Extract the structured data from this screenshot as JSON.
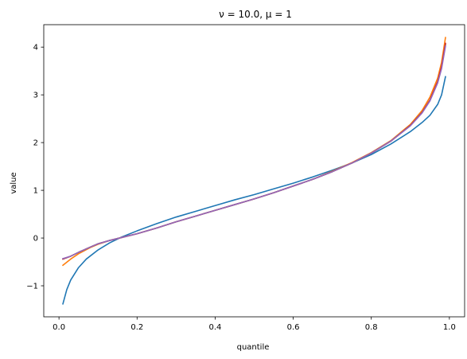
{
  "chart_data": {
    "type": "line",
    "title": "ν = 10.0, μ = 1",
    "xlabel": "quantile",
    "ylabel": "value",
    "xlim": [
      -0.039,
      1.039
    ],
    "ylim": [
      -1.65,
      4.47
    ],
    "xticks": [
      0.0,
      0.2,
      0.4,
      0.6,
      0.8,
      1.0
    ],
    "xtick_labels": [
      "0.0",
      "0.2",
      "0.4",
      "0.6",
      "0.8",
      "1.0"
    ],
    "yticks": [
      -1,
      0,
      1,
      2,
      3,
      4
    ],
    "ytick_labels": [
      "−1",
      "0",
      "1",
      "2",
      "3",
      "4"
    ],
    "grid": false,
    "legend": "none",
    "series": [
      {
        "color": "#1f77b4",
        "x": [
          0.01,
          0.02,
          0.03,
          0.05,
          0.07,
          0.1,
          0.13,
          0.16,
          0.2,
          0.25,
          0.3,
          0.35,
          0.4,
          0.45,
          0.5,
          0.55,
          0.6,
          0.65,
          0.7,
          0.75,
          0.8,
          0.85,
          0.9,
          0.93,
          0.95,
          0.97,
          0.98,
          0.99
        ],
        "y": [
          -1.38,
          -1.08,
          -0.88,
          -0.62,
          -0.44,
          -0.25,
          -0.1,
          0.02,
          0.15,
          0.3,
          0.44,
          0.56,
          0.68,
          0.8,
          0.91,
          1.03,
          1.15,
          1.28,
          1.42,
          1.57,
          1.75,
          1.97,
          2.23,
          2.42,
          2.57,
          2.8,
          3.0,
          3.38
        ]
      },
      {
        "color": "#ff7f0e",
        "x": [
          0.01,
          0.03,
          0.05,
          0.08,
          0.1,
          0.13,
          0.16,
          0.2,
          0.25,
          0.3,
          0.35,
          0.4,
          0.45,
          0.5,
          0.55,
          0.6,
          0.65,
          0.7,
          0.75,
          0.8,
          0.85,
          0.9,
          0.93,
          0.95,
          0.97,
          0.98,
          0.99
        ],
        "y": [
          -0.57,
          -0.44,
          -0.33,
          -0.2,
          -0.13,
          -0.05,
          0.01,
          0.09,
          0.21,
          0.34,
          0.46,
          0.58,
          0.7,
          0.82,
          0.95,
          1.09,
          1.23,
          1.4,
          1.58,
          1.79,
          2.04,
          2.38,
          2.67,
          2.95,
          3.35,
          3.68,
          4.2
        ]
      },
      {
        "color": "#2ca02c",
        "x": [
          0.01,
          0.03,
          0.05,
          0.08,
          0.1,
          0.13,
          0.16,
          0.2,
          0.25,
          0.3,
          0.35,
          0.4,
          0.45,
          0.5,
          0.55,
          0.6,
          0.65,
          0.7,
          0.75,
          0.8,
          0.85,
          0.9,
          0.93,
          0.95,
          0.97,
          0.98,
          0.99
        ],
        "y": [
          -0.44,
          -0.38,
          -0.3,
          -0.19,
          -0.12,
          -0.05,
          0.01,
          0.09,
          0.21,
          0.34,
          0.46,
          0.58,
          0.7,
          0.82,
          0.95,
          1.09,
          1.23,
          1.39,
          1.57,
          1.78,
          2.03,
          2.36,
          2.63,
          2.88,
          3.27,
          3.58,
          4.06
        ]
      },
      {
        "color": "#d62728",
        "x": [
          0.01,
          0.03,
          0.05,
          0.08,
          0.1,
          0.13,
          0.16,
          0.2,
          0.25,
          0.3,
          0.35,
          0.4,
          0.45,
          0.5,
          0.55,
          0.6,
          0.65,
          0.7,
          0.75,
          0.8,
          0.85,
          0.9,
          0.93,
          0.95,
          0.97,
          0.98,
          0.99
        ],
        "y": [
          -0.44,
          -0.38,
          -0.3,
          -0.19,
          -0.12,
          -0.05,
          0.01,
          0.09,
          0.21,
          0.34,
          0.46,
          0.58,
          0.7,
          0.82,
          0.95,
          1.09,
          1.23,
          1.39,
          1.57,
          1.78,
          2.03,
          2.36,
          2.63,
          2.89,
          3.28,
          3.6,
          4.08
        ]
      },
      {
        "color": "#9467bd",
        "x": [
          0.01,
          0.03,
          0.05,
          0.08,
          0.1,
          0.13,
          0.16,
          0.2,
          0.25,
          0.3,
          0.35,
          0.4,
          0.45,
          0.5,
          0.55,
          0.6,
          0.65,
          0.7,
          0.75,
          0.8,
          0.85,
          0.9,
          0.93,
          0.95,
          0.97,
          0.98,
          0.99
        ],
        "y": [
          -0.43,
          -0.38,
          -0.3,
          -0.19,
          -0.12,
          -0.05,
          0.01,
          0.09,
          0.21,
          0.34,
          0.46,
          0.58,
          0.7,
          0.82,
          0.95,
          1.09,
          1.23,
          1.39,
          1.57,
          1.78,
          2.03,
          2.35,
          2.62,
          2.87,
          3.25,
          3.55,
          4.02
        ]
      }
    ]
  }
}
